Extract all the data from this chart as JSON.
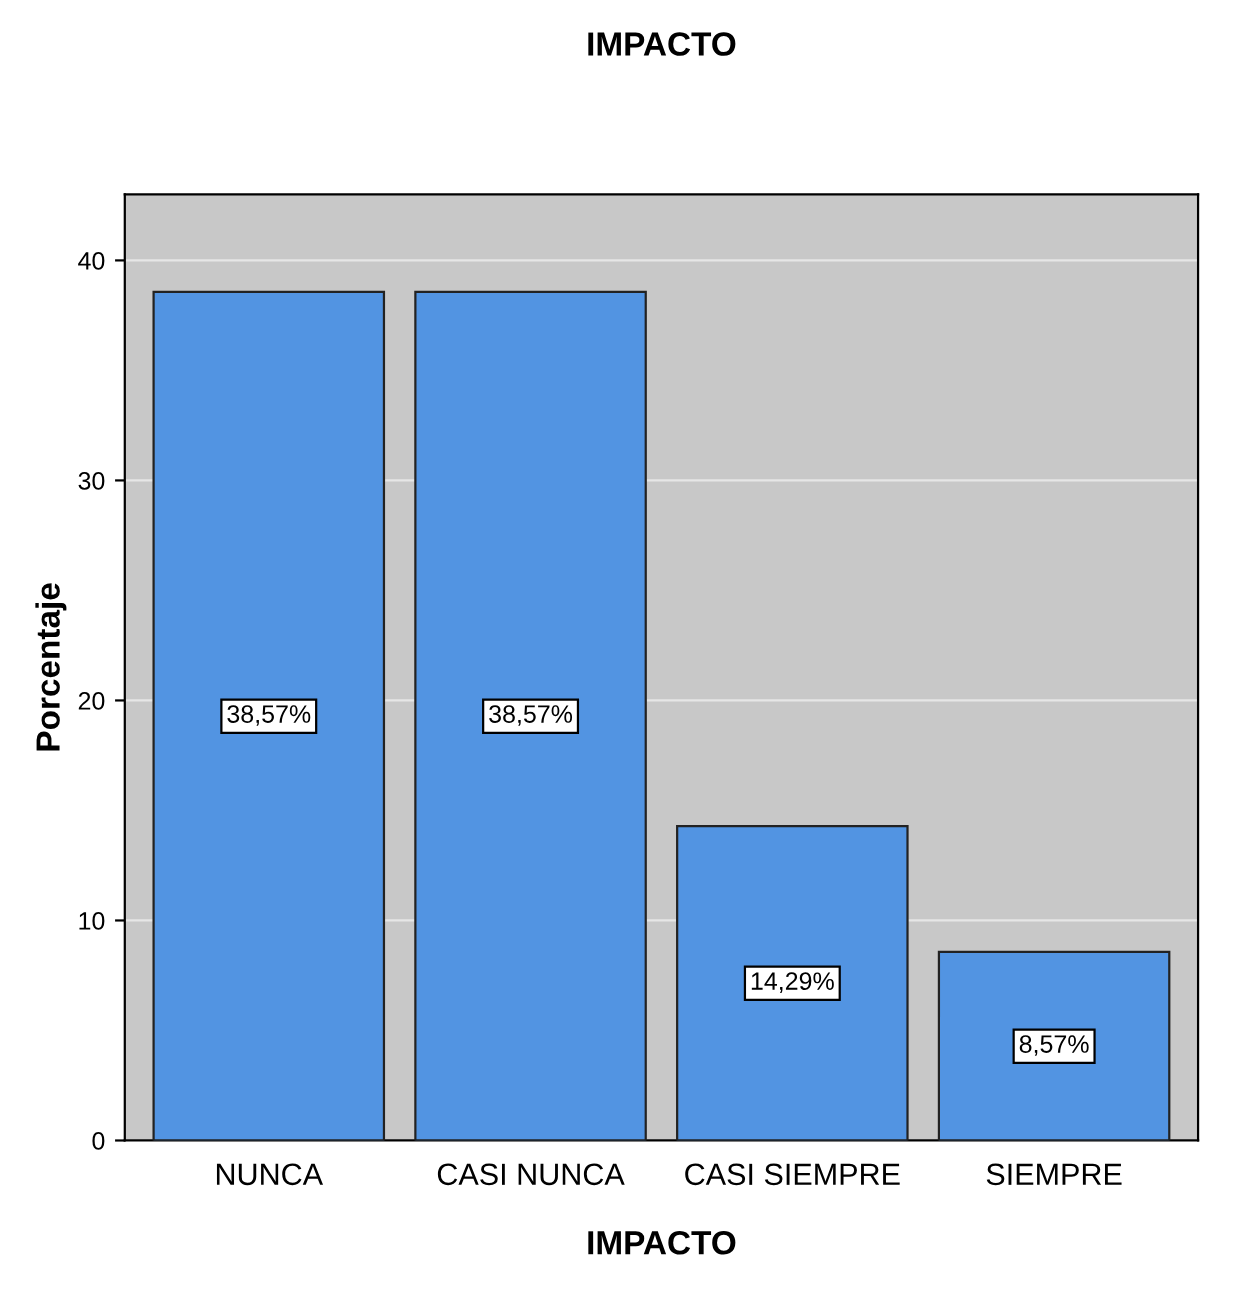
{
  "chart_data": {
    "type": "bar",
    "title": "IMPACTO",
    "xlabel": "IMPACTO",
    "ylabel": "Porcentaje",
    "categories": [
      "NUNCA",
      "CASI NUNCA",
      "CASI SIEMPRE",
      "SIEMPRE"
    ],
    "values": [
      38.57,
      38.57,
      14.29,
      8.57
    ],
    "color": "#5294e2",
    "value_labels": [
      "38,57%",
      "38,57%",
      "14,29%",
      "8,57%"
    ],
    "ylim": [
      0,
      43
    ],
    "yticks": [
      0,
      10,
      20,
      30,
      40
    ],
    "grid": "y"
  }
}
